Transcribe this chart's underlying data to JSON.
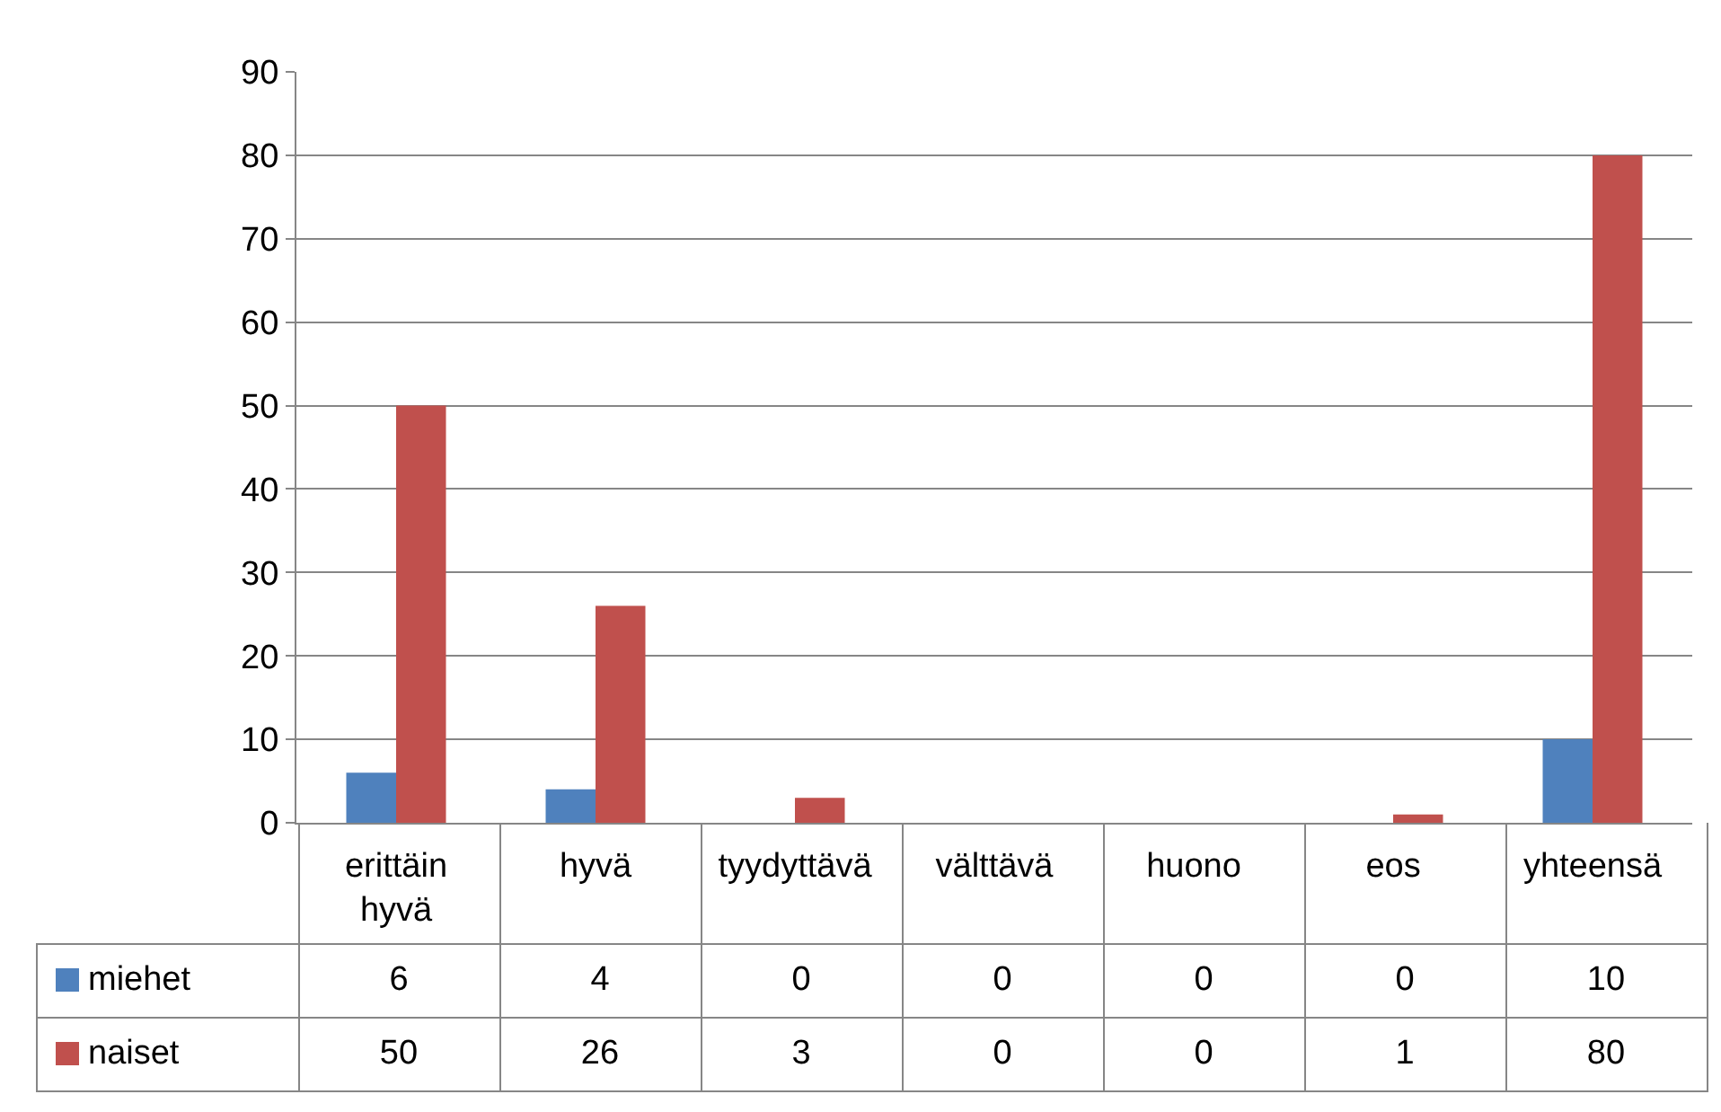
{
  "chart_data": {
    "type": "bar",
    "categories": [
      "erittäin hyvä",
      "hyvä",
      "tyydyttävä",
      "välttävä",
      "huono",
      "eos",
      "yhteensä"
    ],
    "series": [
      {
        "name": "miehet",
        "color": "#4f81bd",
        "values": [
          6,
          4,
          0,
          0,
          0,
          0,
          10
        ]
      },
      {
        "name": "naiset",
        "color": "#c0504d",
        "values": [
          50,
          26,
          3,
          0,
          0,
          1,
          80
        ]
      }
    ],
    "ylim": [
      0,
      90
    ],
    "yticks": [
      0,
      10,
      20,
      30,
      40,
      50,
      60,
      70,
      80,
      90
    ],
    "grid": "y",
    "legend": "bottom",
    "data_labels": true
  }
}
